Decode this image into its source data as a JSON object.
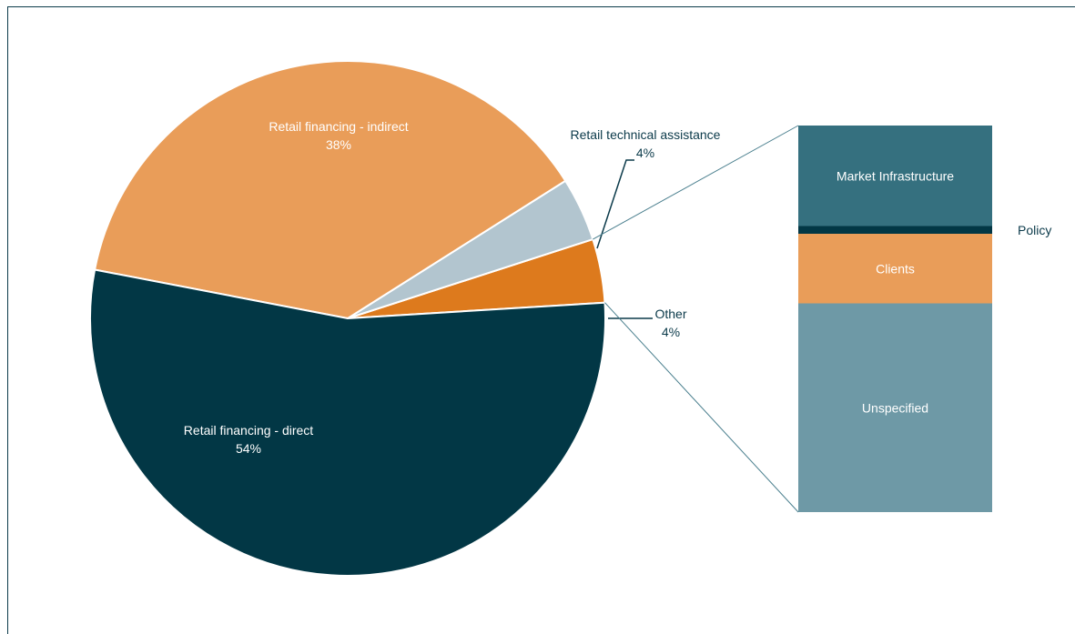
{
  "chart_data": [
    {
      "type": "pie",
      "slices": [
        {
          "label": "Retail financing - direct",
          "value_label": "54%",
          "value": 54,
          "color": "#023745",
          "label_color": "#ffffff"
        },
        {
          "label": "Retail financing - indirect",
          "value_label": "38%",
          "value": 38,
          "color": "#e99d59",
          "label_color": "#ffffff"
        },
        {
          "label": "Retail technical assistance",
          "value_label": "4%",
          "value": 4,
          "color": "#b2c5cf",
          "label_color": "#0b3a4a"
        },
        {
          "label": "Other",
          "value_label": "4%",
          "value": 4,
          "color": "#dd7a1d",
          "label_color": "#0b3a4a"
        }
      ]
    },
    {
      "type": "bar",
      "stacked": true,
      "breakdown_of": "Other",
      "segments": [
        {
          "label": "Market Infrastructure",
          "share": 0.26,
          "color": "#35707f",
          "label_color": "#ffffff"
        },
        {
          "label": "Policy",
          "share": 0.02,
          "color": "#023745",
          "label_color": "#0b3a4a"
        },
        {
          "label": "Clients",
          "share": 0.18,
          "color": "#e99d59",
          "label_color": "#ffffff"
        },
        {
          "label": "Unspecified",
          "share": 0.54,
          "color": "#6e99a6",
          "label_color": "#ffffff"
        }
      ]
    }
  ]
}
